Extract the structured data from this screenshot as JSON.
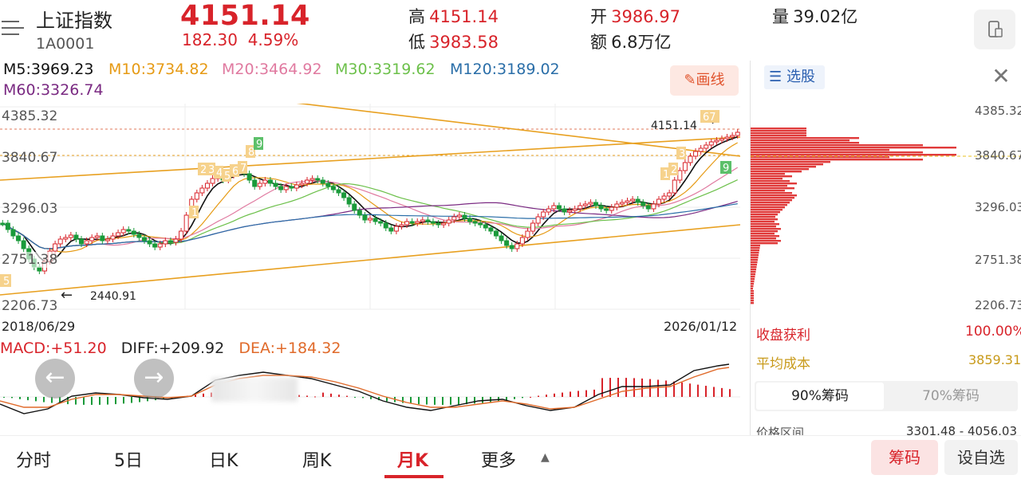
{
  "header": {
    "title": "上证指数",
    "code": "1A0001",
    "price": "4151.14",
    "change": "182.30",
    "change_pct": "4.59%",
    "high_label": "高",
    "high": "4151.14",
    "low_label": "低",
    "low": "3983.58",
    "open_label": "开",
    "open": "3986.97",
    "amount_label": "额",
    "amount": "6.8万亿",
    "volume_label": "量",
    "volume": "39.02亿"
  },
  "ma": {
    "m5": "M5:3969.23",
    "m10": "M10:3734.82",
    "m20": "M20:3464.92",
    "m30": "M30:3319.62",
    "m120": "M120:3189.02",
    "m60": "M60:3326.74",
    "draw_label": "画线"
  },
  "colors": {
    "up": "#d8232a",
    "down": "#1a9a3a",
    "m5": "#111111",
    "m10": "#e69a14",
    "m20": "#e07aa0",
    "m30": "#6cc04a",
    "m60": "#7a2a82",
    "m120": "#2a6ea8",
    "trend": "#e8a020"
  },
  "chart": {
    "y_ticks": [
      "4385.32",
      "3840.67",
      "3296.03",
      "2751.38",
      "2206.73"
    ],
    "start_date": "2018/06/29",
    "end_date": "2026/01/12",
    "current_label": "4151.14",
    "low_label": "2440.91",
    "markers": [
      "1",
      "2",
      "3",
      "4",
      "5",
      "6",
      "7",
      "8",
      "9",
      "5",
      "1",
      "2",
      "3",
      "9",
      "9"
    ]
  },
  "macd": {
    "macd": "MACD:+51.20",
    "diff": "DIFF:+209.92",
    "dea": "DEA:+184.32",
    "prev_icon": "arrow-left-icon",
    "next_icon": "arrow-right-icon"
  },
  "right_panel": {
    "select_label": "选股",
    "y_ticks": [
      "4385.32",
      "3840.67",
      "3296.03",
      "2751.38",
      "2206.73"
    ],
    "profit_label": "收盘获利",
    "profit_value": "100.00%",
    "avg_cost_label": "平均成本",
    "avg_cost_value": "3859.31",
    "tab_90": "90%筹码",
    "tab_70": "70%筹码",
    "range_label": "价格区间",
    "range_value": "3301.48 - 4056.03"
  },
  "bottom": {
    "tabs": [
      "分时",
      "5日",
      "日K",
      "周K",
      "月K",
      "更多"
    ],
    "active_tab": "月K",
    "chip_button": "筹码",
    "watch_button": "设自选"
  }
}
